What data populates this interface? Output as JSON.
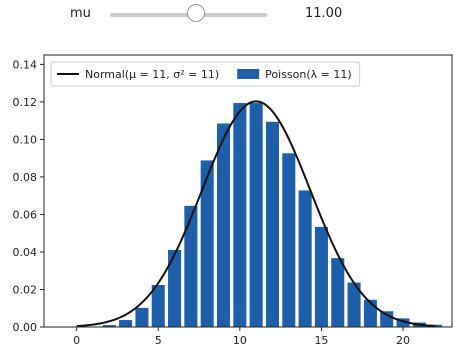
{
  "controls": {
    "mu_slider": {
      "label": "mu",
      "value_text": "11.00",
      "min": 0,
      "max": 20,
      "value": 11
    }
  },
  "chart_data": {
    "type": "bar",
    "xlim": [
      -2,
      23
    ],
    "ylim": [
      0,
      0.145
    ],
    "xticks": [
      0,
      5,
      10,
      15,
      20
    ],
    "yticks": [
      0.0,
      0.02,
      0.04,
      0.06,
      0.08,
      0.1,
      0.12,
      0.14
    ],
    "grid": false,
    "legend": "top-left",
    "legend_entries": {
      "normal": "Normal(μ = 11, σ² = 11)",
      "poisson": "Poisson(λ = 11)"
    },
    "colors": {
      "poisson": "#1f5faa",
      "normal": "#111111"
    },
    "series": [
      {
        "name": "Poisson(λ = 11)",
        "type": "bar",
        "x": [
          0,
          1,
          2,
          3,
          4,
          5,
          6,
          7,
          8,
          9,
          10,
          11,
          12,
          13,
          14,
          15,
          16,
          17,
          18,
          19,
          20,
          21,
          22
        ],
        "y": [
          0.0,
          0.0002,
          0.001,
          0.0037,
          0.0102,
          0.0224,
          0.0411,
          0.0646,
          0.0888,
          0.1085,
          0.1194,
          0.1194,
          0.1094,
          0.0926,
          0.0728,
          0.0534,
          0.0367,
          0.0237,
          0.0145,
          0.0084,
          0.0046,
          0.0024,
          0.0012
        ]
      },
      {
        "name": "Normal(μ = 11, σ² = 11)",
        "type": "line",
        "mean": 11,
        "variance": 11,
        "x_range": [
          0,
          22
        ]
      }
    ]
  }
}
